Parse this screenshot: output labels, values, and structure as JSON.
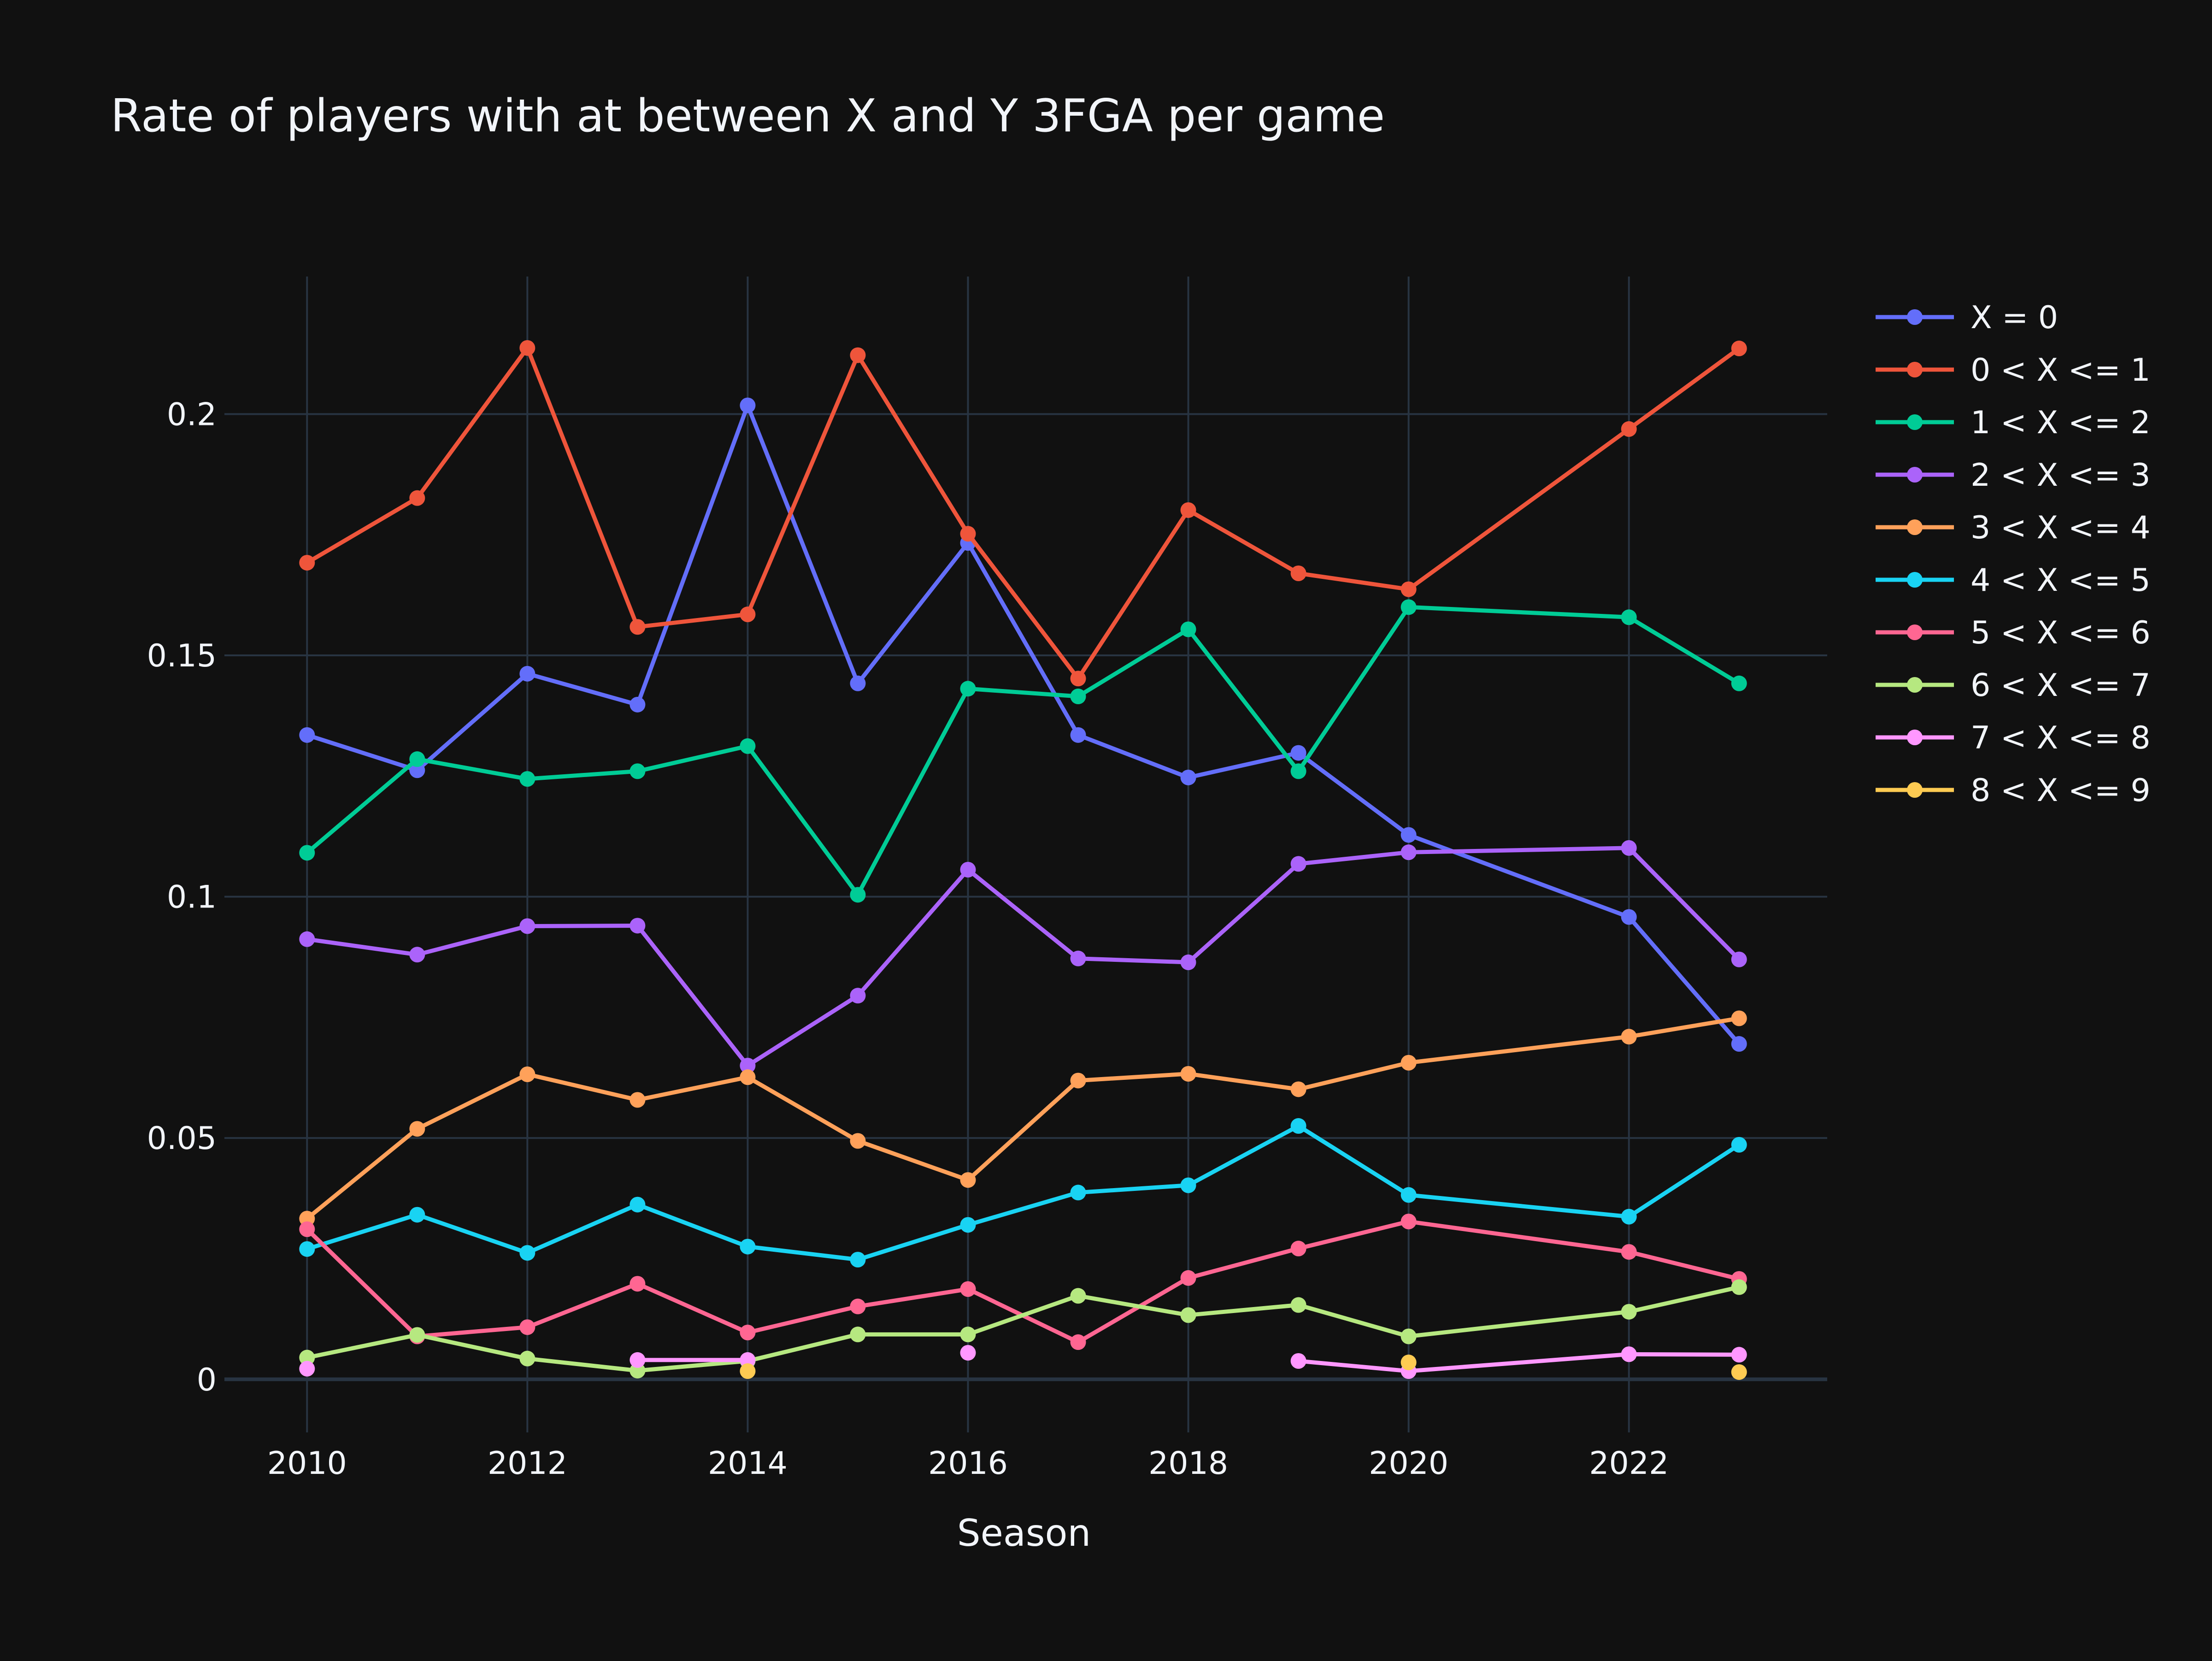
{
  "chart_data": {
    "type": "line",
    "title": "Rate of players with at between X and Y 3FGA per game",
    "xlabel": "Season",
    "ylabel": "",
    "xlim": [
      2009.25,
      2023.8
    ],
    "ylim": [
      -0.011,
      0.2285
    ],
    "x_ticks": [
      2010,
      2012,
      2014,
      2016,
      2018,
      2020,
      2022
    ],
    "y_ticks": [
      0,
      0.05,
      0.1,
      0.15,
      0.2
    ],
    "y_tick_labels": [
      "0",
      "0.05",
      "0.1",
      "0.15",
      "0.2"
    ],
    "grid": true,
    "legend_position": "top-right",
    "background": "#111111",
    "grid_color": "#283442",
    "text_color": "#f2f5fa",
    "series": [
      {
        "name": "X = 0",
        "color": "#636efa",
        "x": [
          2010,
          2011,
          2012,
          2013,
          2014,
          2015,
          2016,
          2017,
          2018,
          2019,
          2020,
          2022,
          2023
        ],
        "y": [
          0.1335,
          0.1262,
          0.1462,
          0.1398,
          0.2018,
          0.1442,
          0.1733,
          0.1335,
          0.1247,
          0.1298,
          0.1128,
          0.0958,
          0.0695
        ]
      },
      {
        "name": "0 < X <= 1",
        "color": "#ef553b",
        "x": [
          2010,
          2011,
          2012,
          2013,
          2014,
          2015,
          2016,
          2017,
          2018,
          2019,
          2020,
          2022,
          2023
        ],
        "y": [
          0.1692,
          0.1826,
          0.2137,
          0.1559,
          0.1585,
          0.2122,
          0.1752,
          0.1452,
          0.1801,
          0.167,
          0.1637,
          0.1969,
          0.2136
        ]
      },
      {
        "name": "1 < X <= 2",
        "color": "#00cc96",
        "x": [
          2010,
          2011,
          2012,
          2013,
          2014,
          2015,
          2016,
          2017,
          2018,
          2019,
          2020,
          2022,
          2023
        ],
        "y": [
          0.1091,
          0.1285,
          0.1244,
          0.126,
          0.1312,
          0.1004,
          0.1431,
          0.1415,
          0.1554,
          0.126,
          0.16,
          0.1579,
          0.1442
        ]
      },
      {
        "name": "2 < X <= 3",
        "color": "#ab63fa",
        "x": [
          2010,
          2011,
          2012,
          2013,
          2014,
          2015,
          2016,
          2017,
          2018,
          2019,
          2020,
          2022,
          2023
        ],
        "y": [
          0.0912,
          0.088,
          0.0939,
          0.094,
          0.065,
          0.0795,
          0.1056,
          0.0872,
          0.0864,
          0.1068,
          0.1092,
          0.1101,
          0.087
        ]
      },
      {
        "name": "3 < X <= 4",
        "color": "#ffa15a",
        "x": [
          2010,
          2011,
          2012,
          2013,
          2014,
          2015,
          2016,
          2017,
          2018,
          2019,
          2020,
          2022,
          2023
        ],
        "y": [
          0.0333,
          0.0519,
          0.0632,
          0.0579,
          0.0626,
          0.0494,
          0.0413,
          0.0619,
          0.0633,
          0.0601,
          0.0656,
          0.071,
          0.0748
        ]
      },
      {
        "name": "4 < X <= 5",
        "color": "#19d3f3",
        "x": [
          2010,
          2011,
          2012,
          2013,
          2014,
          2015,
          2016,
          2017,
          2018,
          2019,
          2020,
          2022,
          2023
        ],
        "y": [
          0.027,
          0.0341,
          0.0262,
          0.0362,
          0.0275,
          0.0248,
          0.032,
          0.0387,
          0.0402,
          0.0525,
          0.0382,
          0.0337,
          0.0486
        ]
      },
      {
        "name": "5 < X <= 6",
        "color": "#ff6692",
        "x": [
          2010,
          2011,
          2012,
          2013,
          2014,
          2015,
          2016,
          2017,
          2018,
          2019,
          2020,
          2022,
          2023
        ],
        "y": [
          0.0311,
          0.0089,
          0.0108,
          0.0198,
          0.0097,
          0.0151,
          0.0187,
          0.0077,
          0.021,
          0.0271,
          0.0327,
          0.0264,
          0.0208
        ]
      },
      {
        "name": "6 < X <= 7",
        "color": "#b6e880",
        "x": [
          2010,
          2011,
          2012,
          2013,
          2014,
          2015,
          2016,
          2017,
          2018,
          2019,
          2020,
          2022,
          2023
        ],
        "y": [
          0.0045,
          0.0092,
          0.0043,
          0.0018,
          0.0038,
          0.0093,
          0.0093,
          0.0173,
          0.0133,
          0.0154,
          0.0089,
          0.014,
          0.0191
        ]
      },
      {
        "name": "7 < X <= 8",
        "color": "#ff97ff",
        "x": [
          2010,
          2013,
          2014,
          2016,
          2019,
          2020,
          2022,
          2023
        ],
        "y": [
          0.0022,
          0.004,
          0.004,
          0.0055,
          0.0038,
          0.0017,
          0.0052,
          0.0051
        ],
        "segments": [
          [
            0
          ],
          [
            1,
            2
          ],
          [
            3
          ],
          [
            4,
            5,
            6,
            7
          ]
        ]
      },
      {
        "name": "8 < X <= 9",
        "color": "#fecb52",
        "x": [
          2014,
          2020,
          2023
        ],
        "y": [
          0.0017,
          0.0035,
          0.0015
        ],
        "segments": [
          [
            0
          ],
          [
            1
          ],
          [
            2
          ]
        ]
      }
    ]
  }
}
